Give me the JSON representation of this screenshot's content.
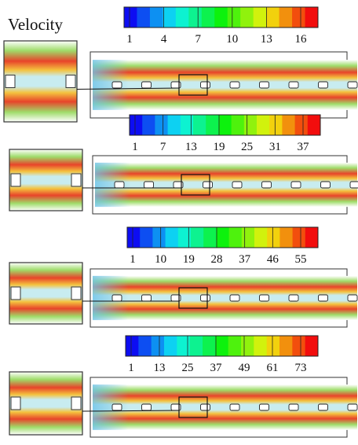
{
  "title": "Velocity",
  "panels": [
    {
      "ticks": [
        1,
        4,
        7,
        10,
        13,
        16
      ]
    },
    {
      "ticks": [
        1,
        7,
        13,
        19,
        25,
        31,
        37
      ]
    },
    {
      "ticks": [
        1,
        10,
        19,
        28,
        37,
        46,
        55
      ]
    },
    {
      "ticks": [
        1,
        13,
        25,
        37,
        49,
        61,
        73
      ]
    }
  ]
}
